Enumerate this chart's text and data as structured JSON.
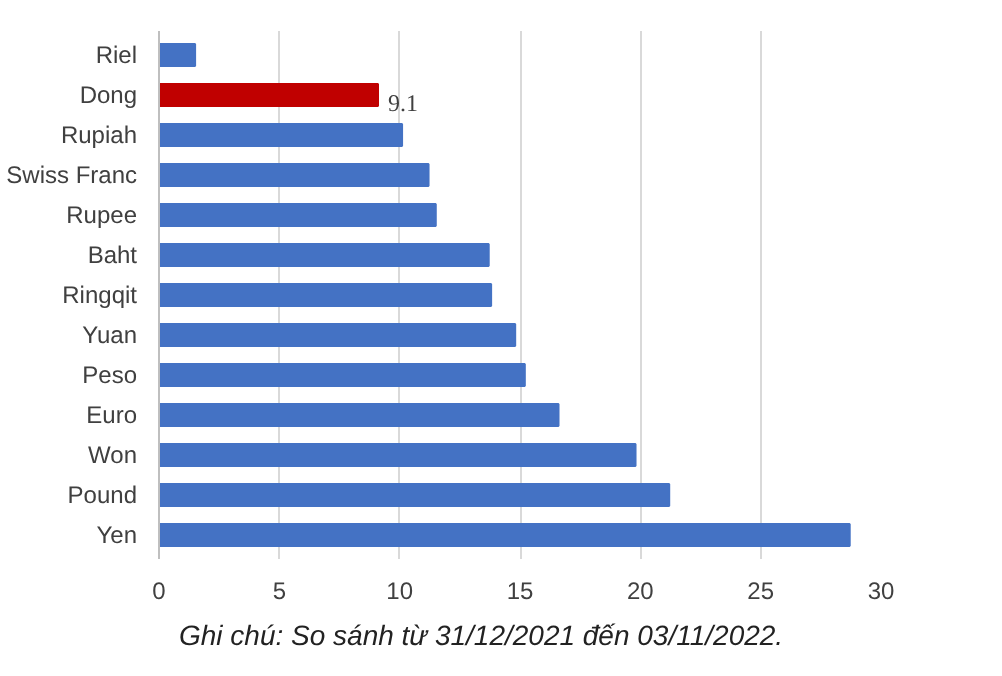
{
  "chart_data": {
    "type": "bar",
    "orientation": "horizontal",
    "categories": [
      "Riel",
      "Dong",
      "Rupiah",
      "Swiss Franc",
      "Rupee",
      "Baht",
      "Ringqit",
      "Yuan",
      "Peso",
      "Euro",
      "Won",
      "Pound",
      "Yen"
    ],
    "values": [
      1.5,
      9.1,
      10.1,
      11.2,
      11.5,
      13.7,
      13.8,
      14.8,
      15.2,
      16.6,
      19.8,
      21.2,
      28.7
    ],
    "colors": [
      "#4472c4",
      "#c00000",
      "#4472c4",
      "#4472c4",
      "#4472c4",
      "#4472c4",
      "#4472c4",
      "#4472c4",
      "#4472c4",
      "#4472c4",
      "#4472c4",
      "#4472c4",
      "#4472c4"
    ],
    "value_labels": [
      null,
      "9.1",
      null,
      null,
      null,
      null,
      null,
      null,
      null,
      null,
      null,
      null,
      null
    ],
    "xlim": [
      0,
      30
    ],
    "xticks": [
      0,
      5,
      10,
      15,
      20,
      25,
      30
    ],
    "grid": "x",
    "annotations": [
      "Ghi chú: So sánh từ 31/12/2021 đến 03/11/2022."
    ]
  }
}
